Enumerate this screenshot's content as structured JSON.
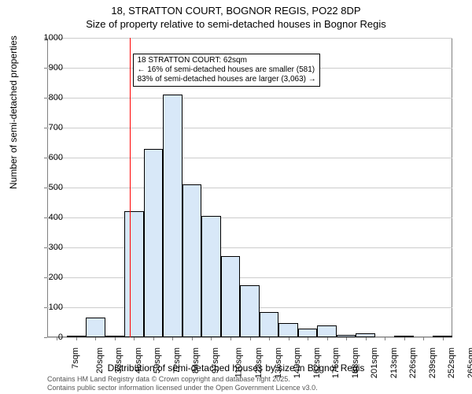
{
  "title_main": "18, STRATTON COURT, BOGNOR REGIS, PO22 8DP",
  "title_sub": "Size of property relative to semi-detached houses in Bognor Regis",
  "chart": {
    "type": "histogram",
    "ylabel": "Number of semi-detached properties",
    "xlabel": "Distribution of semi-detached houses by size in Bognor Regis",
    "ylim": [
      0,
      1000
    ],
    "ytick_step": 100,
    "yticks": [
      0,
      100,
      200,
      300,
      400,
      500,
      600,
      700,
      800,
      900,
      1000
    ],
    "xticks": [
      "7sqm",
      "20sqm",
      "33sqm",
      "46sqm",
      "59sqm",
      "72sqm",
      "84sqm",
      "97sqm",
      "110sqm",
      "123sqm",
      "136sqm",
      "149sqm",
      "162sqm",
      "175sqm",
      "188sqm",
      "201sqm",
      "213sqm",
      "226sqm",
      "239sqm",
      "252sqm",
      "265sqm"
    ],
    "values": [
      0,
      4,
      65,
      4,
      420,
      630,
      810,
      510,
      405,
      270,
      175,
      85,
      48,
      30,
      40,
      8,
      12,
      0,
      5,
      0,
      4
    ],
    "bar_fill": "#d8e8f8",
    "bar_border": "#000000",
    "grid_color": "#cccccc",
    "background": "#ffffff",
    "ref_line_x_index": 4.3,
    "ref_line_color": "#ff0000",
    "annotation": {
      "line1": "18 STRATTON COURT: 62sqm",
      "line2": "← 16% of semi-detached houses are smaller (581)",
      "line3": "83% of semi-detached houses are larger (3,063) →"
    }
  },
  "footer": {
    "line1": "Contains HM Land Registry data © Crown copyright and database right 2025.",
    "line2": "Contains public sector information licensed under the Open Government Licence v3.0."
  }
}
